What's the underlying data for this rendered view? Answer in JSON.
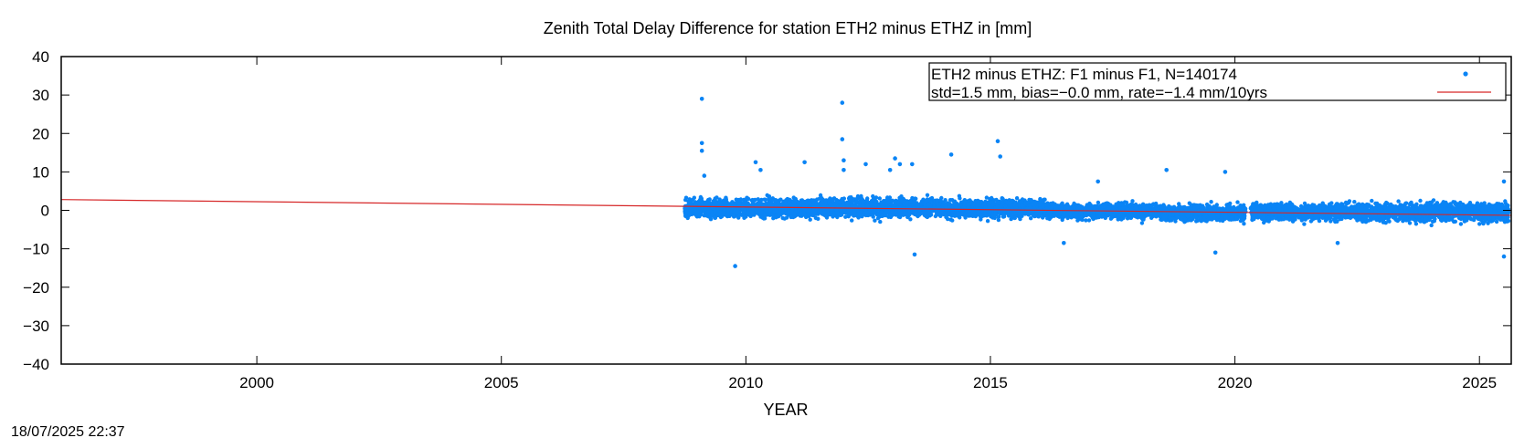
{
  "chart_data": {
    "type": "scatter",
    "title": "Zenith Total Delay Difference for station ETH2 minus ETHZ in [mm]",
    "xlabel": "YEAR",
    "ylabel": "",
    "xlim": [
      1996.0,
      2025.65
    ],
    "ylim": [
      -40,
      40
    ],
    "x_ticks": [
      2000,
      2005,
      2010,
      2015,
      2020,
      2025
    ],
    "y_ticks": [
      -40,
      -30,
      -20,
      -10,
      0,
      10,
      20,
      30,
      40
    ],
    "grid": false,
    "legend_position": "top-right",
    "legend": [
      {
        "label": "ETH2 minus ETHZ: F1 minus F1, N=140174",
        "marker": "dot"
      },
      {
        "label": "std=1.5 mm, bias=−0.0 mm, rate=−1.4 mm/10yrs",
        "marker": "line"
      }
    ],
    "series": [
      {
        "kind": "scatter",
        "color": "#0a84f5",
        "n_points": 140174,
        "data_span": [
          2008.75,
          2025.6
        ],
        "gap": [
          2020.22,
          2020.32
        ],
        "band_segments": [
          {
            "x": [
              2008.75,
              2011.5
            ],
            "y_low": -3.3,
            "y_high": 4.2
          },
          {
            "x": [
              2011.5,
              2014.0
            ],
            "y_low": -3.3,
            "y_high": 4.5
          },
          {
            "x": [
              2014.0,
              2016.3
            ],
            "y_low": -3.2,
            "y_high": 4.0
          },
          {
            "x": [
              2016.3,
              2018.5
            ],
            "y_low": -3.3,
            "y_high": 2.8
          },
          {
            "x": [
              2018.5,
              2020.22
            ],
            "y_low": -4.0,
            "y_high": 2.5
          },
          {
            "x": [
              2020.32,
              2022.5
            ],
            "y_low": -3.8,
            "y_high": 3.0
          },
          {
            "x": [
              2022.5,
              2025.6
            ],
            "y_low": -4.3,
            "y_high": 3.2
          }
        ],
        "outliers": [
          [
            2009.1,
            29.0
          ],
          [
            2009.1,
            17.5
          ],
          [
            2009.1,
            15.5
          ],
          [
            2009.15,
            9.0
          ],
          [
            2009.78,
            -14.5
          ],
          [
            2010.2,
            12.5
          ],
          [
            2010.3,
            10.5
          ],
          [
            2011.2,
            12.5
          ],
          [
            2011.97,
            28.0
          ],
          [
            2011.97,
            18.5
          ],
          [
            2012.0,
            13.0
          ],
          [
            2012.0,
            10.5
          ],
          [
            2012.45,
            12.0
          ],
          [
            2012.95,
            10.5
          ],
          [
            2013.05,
            13.5
          ],
          [
            2013.15,
            12.0
          ],
          [
            2013.4,
            12.0
          ],
          [
            2013.45,
            -11.5
          ],
          [
            2014.2,
            14.5
          ],
          [
            2015.15,
            18.0
          ],
          [
            2015.2,
            14.0
          ],
          [
            2016.5,
            -8.5
          ],
          [
            2017.2,
            7.5
          ],
          [
            2018.6,
            10.5
          ],
          [
            2019.6,
            -11.0
          ],
          [
            2019.8,
            10.0
          ],
          [
            2022.1,
            -8.5
          ],
          [
            2025.5,
            -12.0
          ],
          [
            2025.5,
            7.5
          ]
        ]
      },
      {
        "kind": "line",
        "color": "#d62728",
        "x": [
          1996.0,
          2025.65
        ],
        "y": [
          2.8,
          -1.3
        ]
      }
    ]
  },
  "footer": {
    "timestamp": "18/07/2025 22:37"
  }
}
